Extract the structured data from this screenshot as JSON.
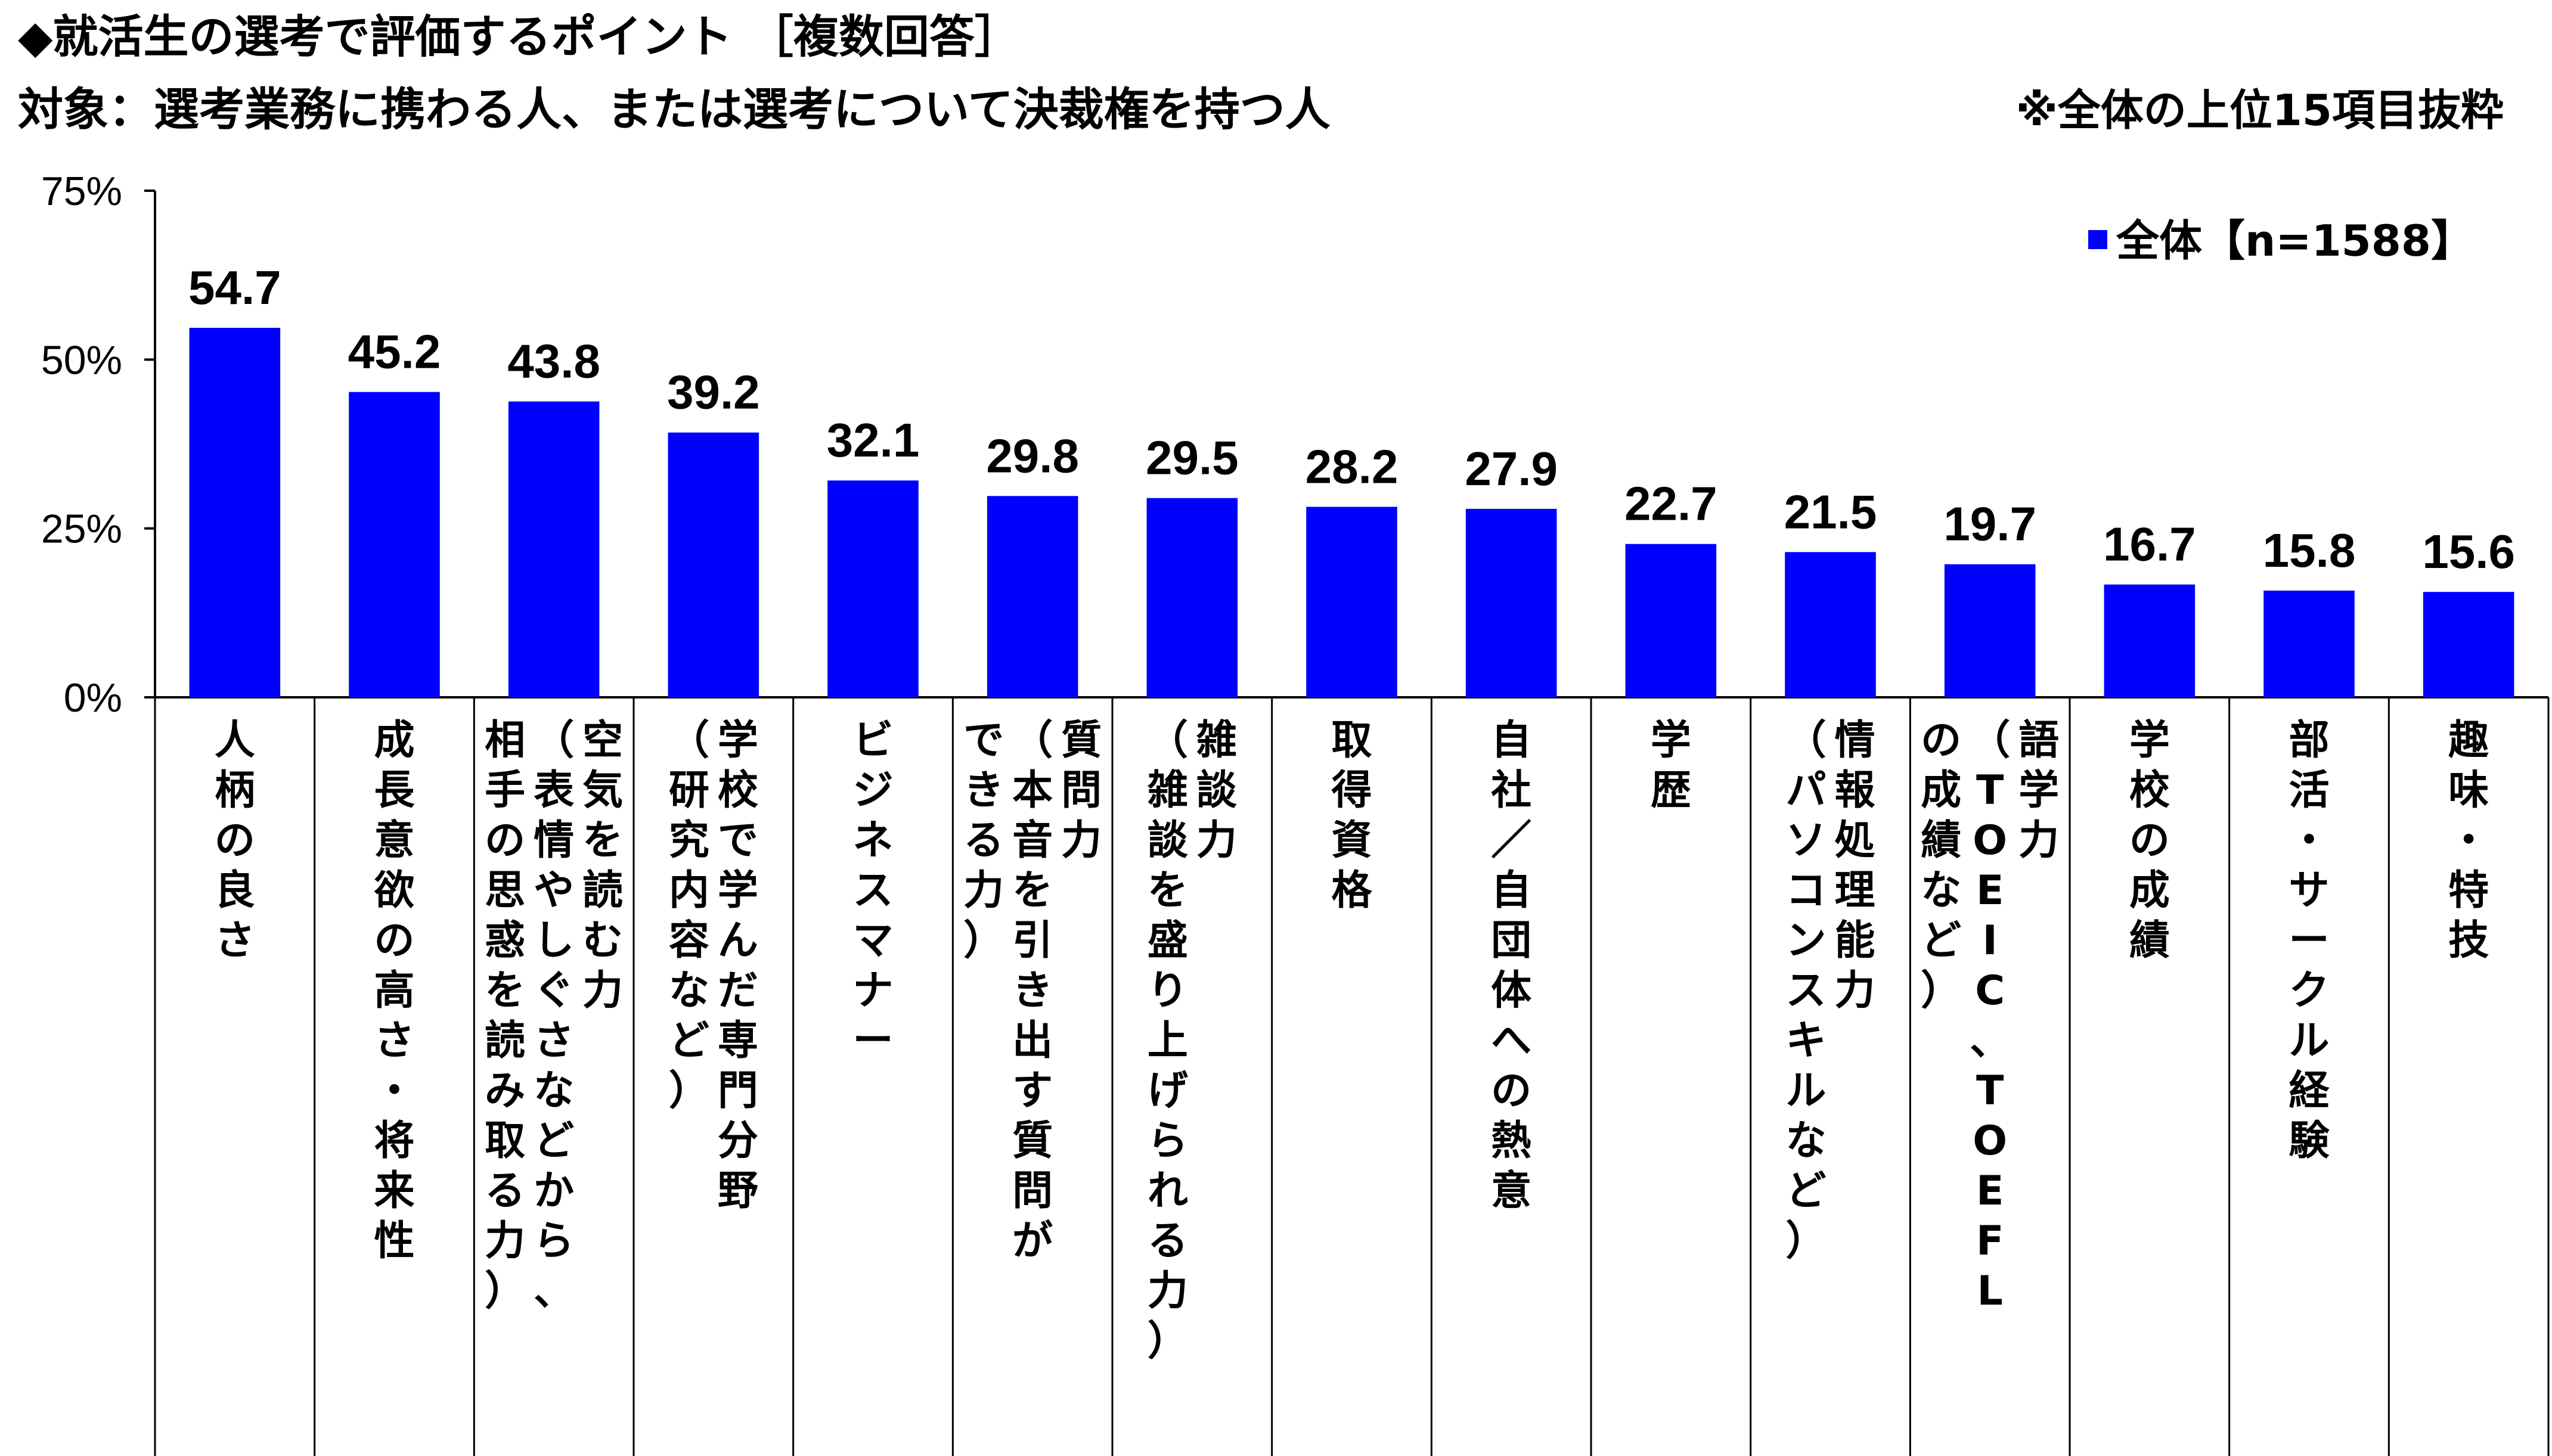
{
  "header": {
    "title": "◆就活生の選考で評価するポイント ［複数回答］",
    "subtitle": "対象：選考業務に携わる人、または選考について決裁権を持つ人",
    "note": "※全体の上位15項目抜粋"
  },
  "legend": {
    "label": "全体【n=1588】"
  },
  "colors": {
    "bar": "#0000FF",
    "axis": "#000000"
  },
  "chart_data": {
    "type": "bar",
    "ylim": [
      0,
      75
    ],
    "yticks": [
      0,
      25,
      50,
      75
    ],
    "ytick_labels": [
      "0%",
      "25%",
      "50%",
      "75%"
    ],
    "grid": false,
    "legend_position": "top-right",
    "categories": [
      {
        "label": "人柄の良さ",
        "sub": "",
        "sub2": ""
      },
      {
        "label": "成長意欲の高さ・将来性",
        "sub": "",
        "sub2": ""
      },
      {
        "label": "空気を読む力",
        "sub": "（表情やしぐさなどから、",
        "sub2": "相手の思惑を読み取る力）"
      },
      {
        "label": "学校で学んだ専門分野",
        "sub": "（研究内容など）",
        "sub2": ""
      },
      {
        "label": "ビジネスマナー",
        "sub": "",
        "sub2": ""
      },
      {
        "label": "質問力",
        "sub": "（本音を引き出す質問が",
        "sub2": "できる力）"
      },
      {
        "label": "雑談力",
        "sub": "（雑談を盛り上げられる力）",
        "sub2": ""
      },
      {
        "label": "取得資格",
        "sub": "",
        "sub2": ""
      },
      {
        "label": "自社／自団体への熱意",
        "sub": "",
        "sub2": ""
      },
      {
        "label": "学歴",
        "sub": "",
        "sub2": ""
      },
      {
        "label": "情報処理能力",
        "sub": "（パソコンスキルなど）",
        "sub2": ""
      },
      {
        "label": "語学力",
        "sub": "（TOEIC、TOEFL",
        "sub2": "の成績など）"
      },
      {
        "label": "学校の成績",
        "sub": "",
        "sub2": ""
      },
      {
        "label": "部活・サークル経験",
        "sub": "",
        "sub2": ""
      },
      {
        "label": "趣味・特技",
        "sub": "",
        "sub2": ""
      }
    ],
    "series": [
      {
        "name": "全体【n=1588】",
        "values": [
          54.7,
          45.2,
          43.8,
          39.2,
          32.1,
          29.8,
          29.5,
          28.2,
          27.9,
          22.7,
          21.5,
          19.7,
          16.7,
          15.8,
          15.6
        ],
        "value_labels": [
          "54.7",
          "45.2",
          "43.8",
          "39.2",
          "32.1",
          "29.8",
          "29.5",
          "28.2",
          "27.9",
          "22.7",
          "21.5",
          "19.7",
          "16.7",
          "15.8",
          "15.6"
        ]
      }
    ]
  }
}
